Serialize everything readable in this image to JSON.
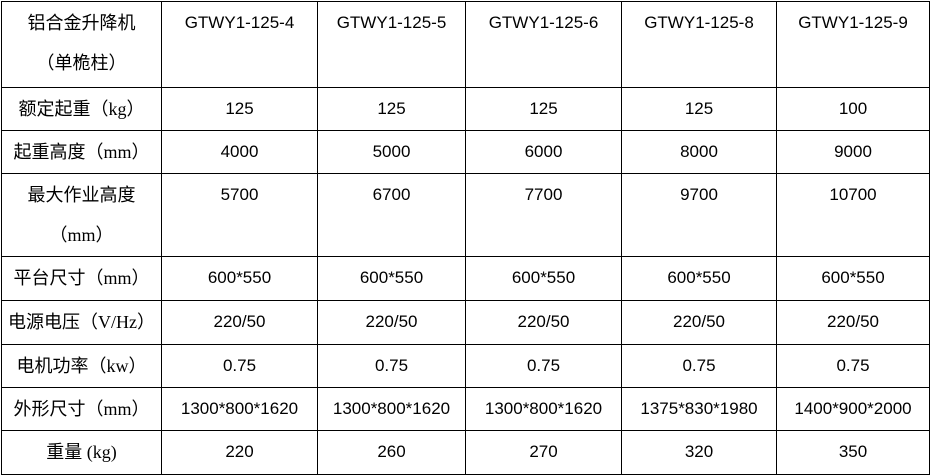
{
  "table": {
    "corner_header": "铝合金升降机\n（单桅柱）",
    "models": [
      "GTWY1-125-4",
      "GTWY1-125-5",
      "GTWY1-125-6",
      "GTWY1-125-8",
      "GTWY1-125-9"
    ],
    "rows": [
      {
        "label": "额定起重（kg）",
        "values": [
          "125",
          "125",
          "125",
          "125",
          "100"
        ]
      },
      {
        "label": "起重高度（mm）",
        "values": [
          "4000",
          "5000",
          "6000",
          "8000",
          "9000"
        ]
      },
      {
        "label": "最大作业高度\n（mm）",
        "values": [
          "5700",
          "6700",
          "7700",
          "9700",
          "10700"
        ]
      },
      {
        "label": "平台尺寸（mm）",
        "values": [
          "600*550",
          "600*550",
          "600*550",
          "600*550",
          "600*550"
        ]
      },
      {
        "label": "电源电压（V/Hz）",
        "values": [
          "220/50",
          "220/50",
          "220/50",
          "220/50",
          "220/50"
        ]
      },
      {
        "label": "电机功率（kw）",
        "values": [
          "0.75",
          "0.75",
          "0.75",
          "0.75",
          "0.75"
        ]
      },
      {
        "label": "外形尺寸（mm）",
        "values": [
          "1300*800*1620",
          "1300*800*1620",
          "1300*800*1620",
          "1375*830*1980",
          "1400*900*2000"
        ]
      },
      {
        "label": "重量 (kg)",
        "values": [
          "220",
          "260",
          "270",
          "320",
          "350"
        ]
      }
    ],
    "colors": {
      "border": "#000000",
      "text": "#000000",
      "background": "#ffffff"
    }
  }
}
